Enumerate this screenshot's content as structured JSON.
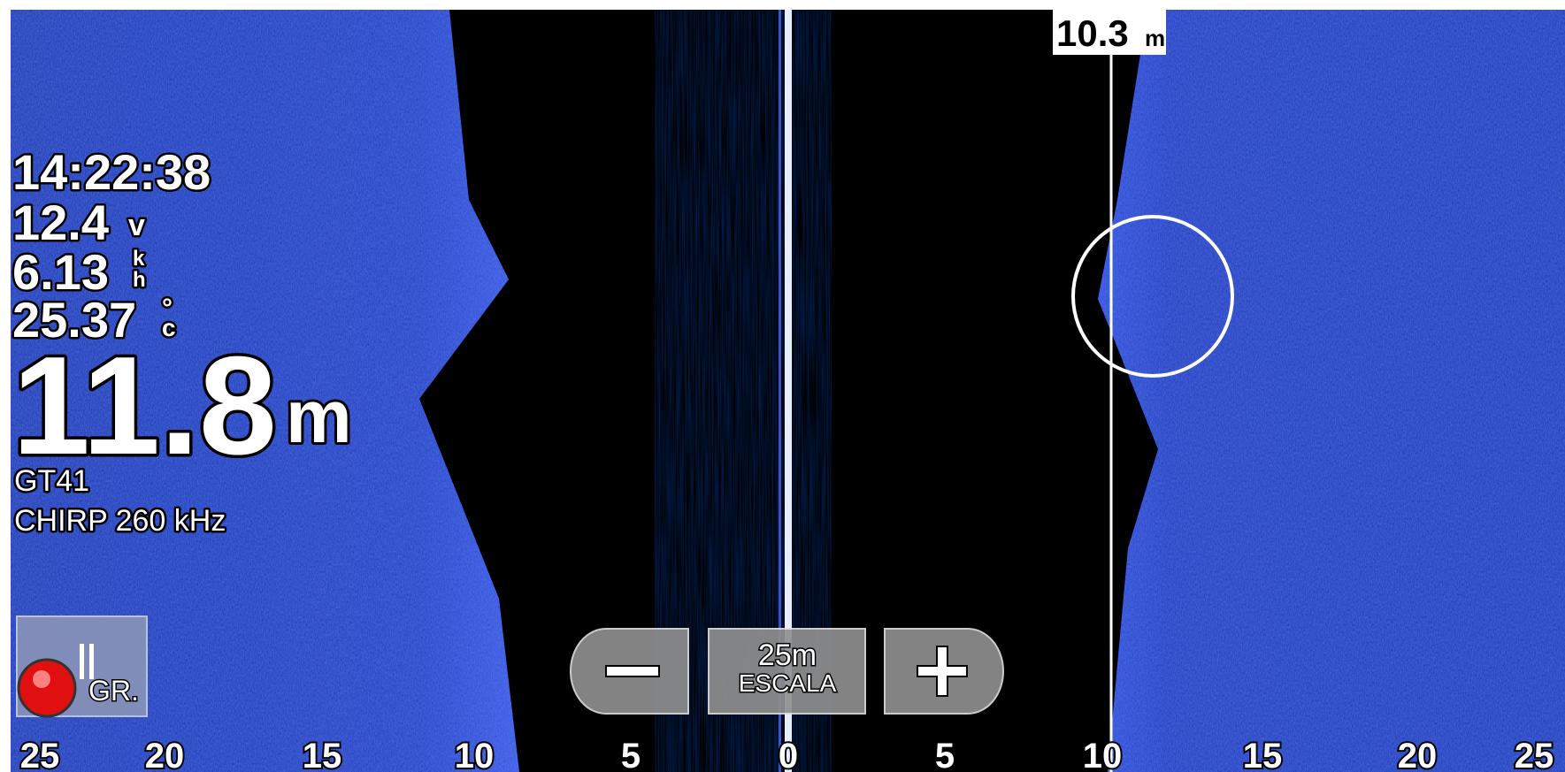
{
  "readouts": {
    "time": "14:22:38",
    "voltage": {
      "value": "12.4",
      "unit": "v"
    },
    "speed": {
      "value": "6.13",
      "unit_top": "k",
      "unit_bottom": "h"
    },
    "temperature": {
      "value": "25.37",
      "unit_top": "°",
      "unit_bottom": "c"
    },
    "depth": {
      "value": "11.8",
      "unit": "m"
    },
    "transducer": "GT41",
    "frequency": "CHIRP 260 kHz"
  },
  "cursor": {
    "value": "10.3",
    "unit": "m"
  },
  "range_control": {
    "range": "25m",
    "label": "ESCALA"
  },
  "record_button": {
    "label": "GR."
  },
  "scale": {
    "left": [
      25,
      20,
      15,
      10,
      5
    ],
    "center": 0,
    "right": [
      5,
      10,
      15,
      20,
      25
    ]
  }
}
